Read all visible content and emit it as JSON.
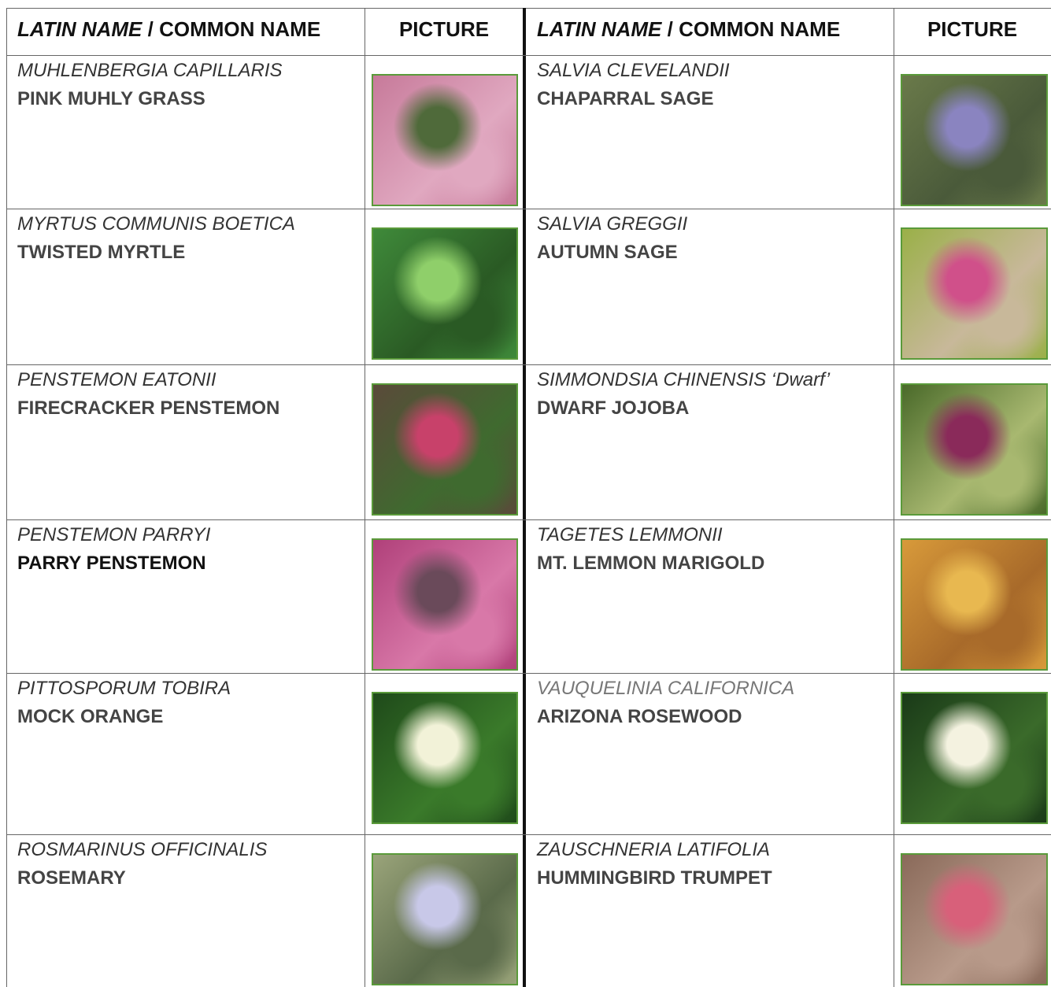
{
  "tables": [
    {
      "header": {
        "latin": "LATIN NAME",
        "separator": "/",
        "common": "COMMON NAME",
        "picture": "PICTURE"
      },
      "rows": [
        {
          "latin": "MUHLENBERGIA CAPILLARIS",
          "common": "PINK MUHLY GRASS"
        },
        {
          "latin": "MYRTUS COMMUNIS BOETICA",
          "common": "TWISTED MYRTLE"
        },
        {
          "latin": "PENSTEMON EATONII",
          "common": "FIRECRACKER PENSTEMON"
        },
        {
          "latin": "PENSTEMON PARRYI",
          "common": "PARRY PENSTEMON"
        },
        {
          "latin": "PITTOSPORUM TOBIRA",
          "common": "MOCK ORANGE"
        },
        {
          "latin": "ROSMARINUS OFFICINALIS",
          "common": "ROSEMARY"
        }
      ]
    },
    {
      "header": {
        "latin": "LATIN NAME",
        "separator": "/",
        "common": "COMMON NAME",
        "picture": "PICTURE"
      },
      "rows": [
        {
          "latin": "SALVIA CLEVELANDII",
          "common": "CHAPARRAL SAGE"
        },
        {
          "latin": "SALVIA GREGGII",
          "common": "AUTUMN SAGE"
        },
        {
          "latin": "SIMMONDSIA CHINENSIS ‘Dwarf’",
          "common": "DWARF JOJOBA"
        },
        {
          "latin": "TAGETES LEMMONII",
          "common": "MT. LEMMON MARIGOLD"
        },
        {
          "latin": "VAUQUELINIA CALIFORNICA",
          "common": "ARIZONA ROSEWOOD"
        },
        {
          "latin": "ZAUSCHNERIA LATIFOLIA",
          "common": "HUMMINGBIRD TRUMPET"
        }
      ]
    }
  ]
}
